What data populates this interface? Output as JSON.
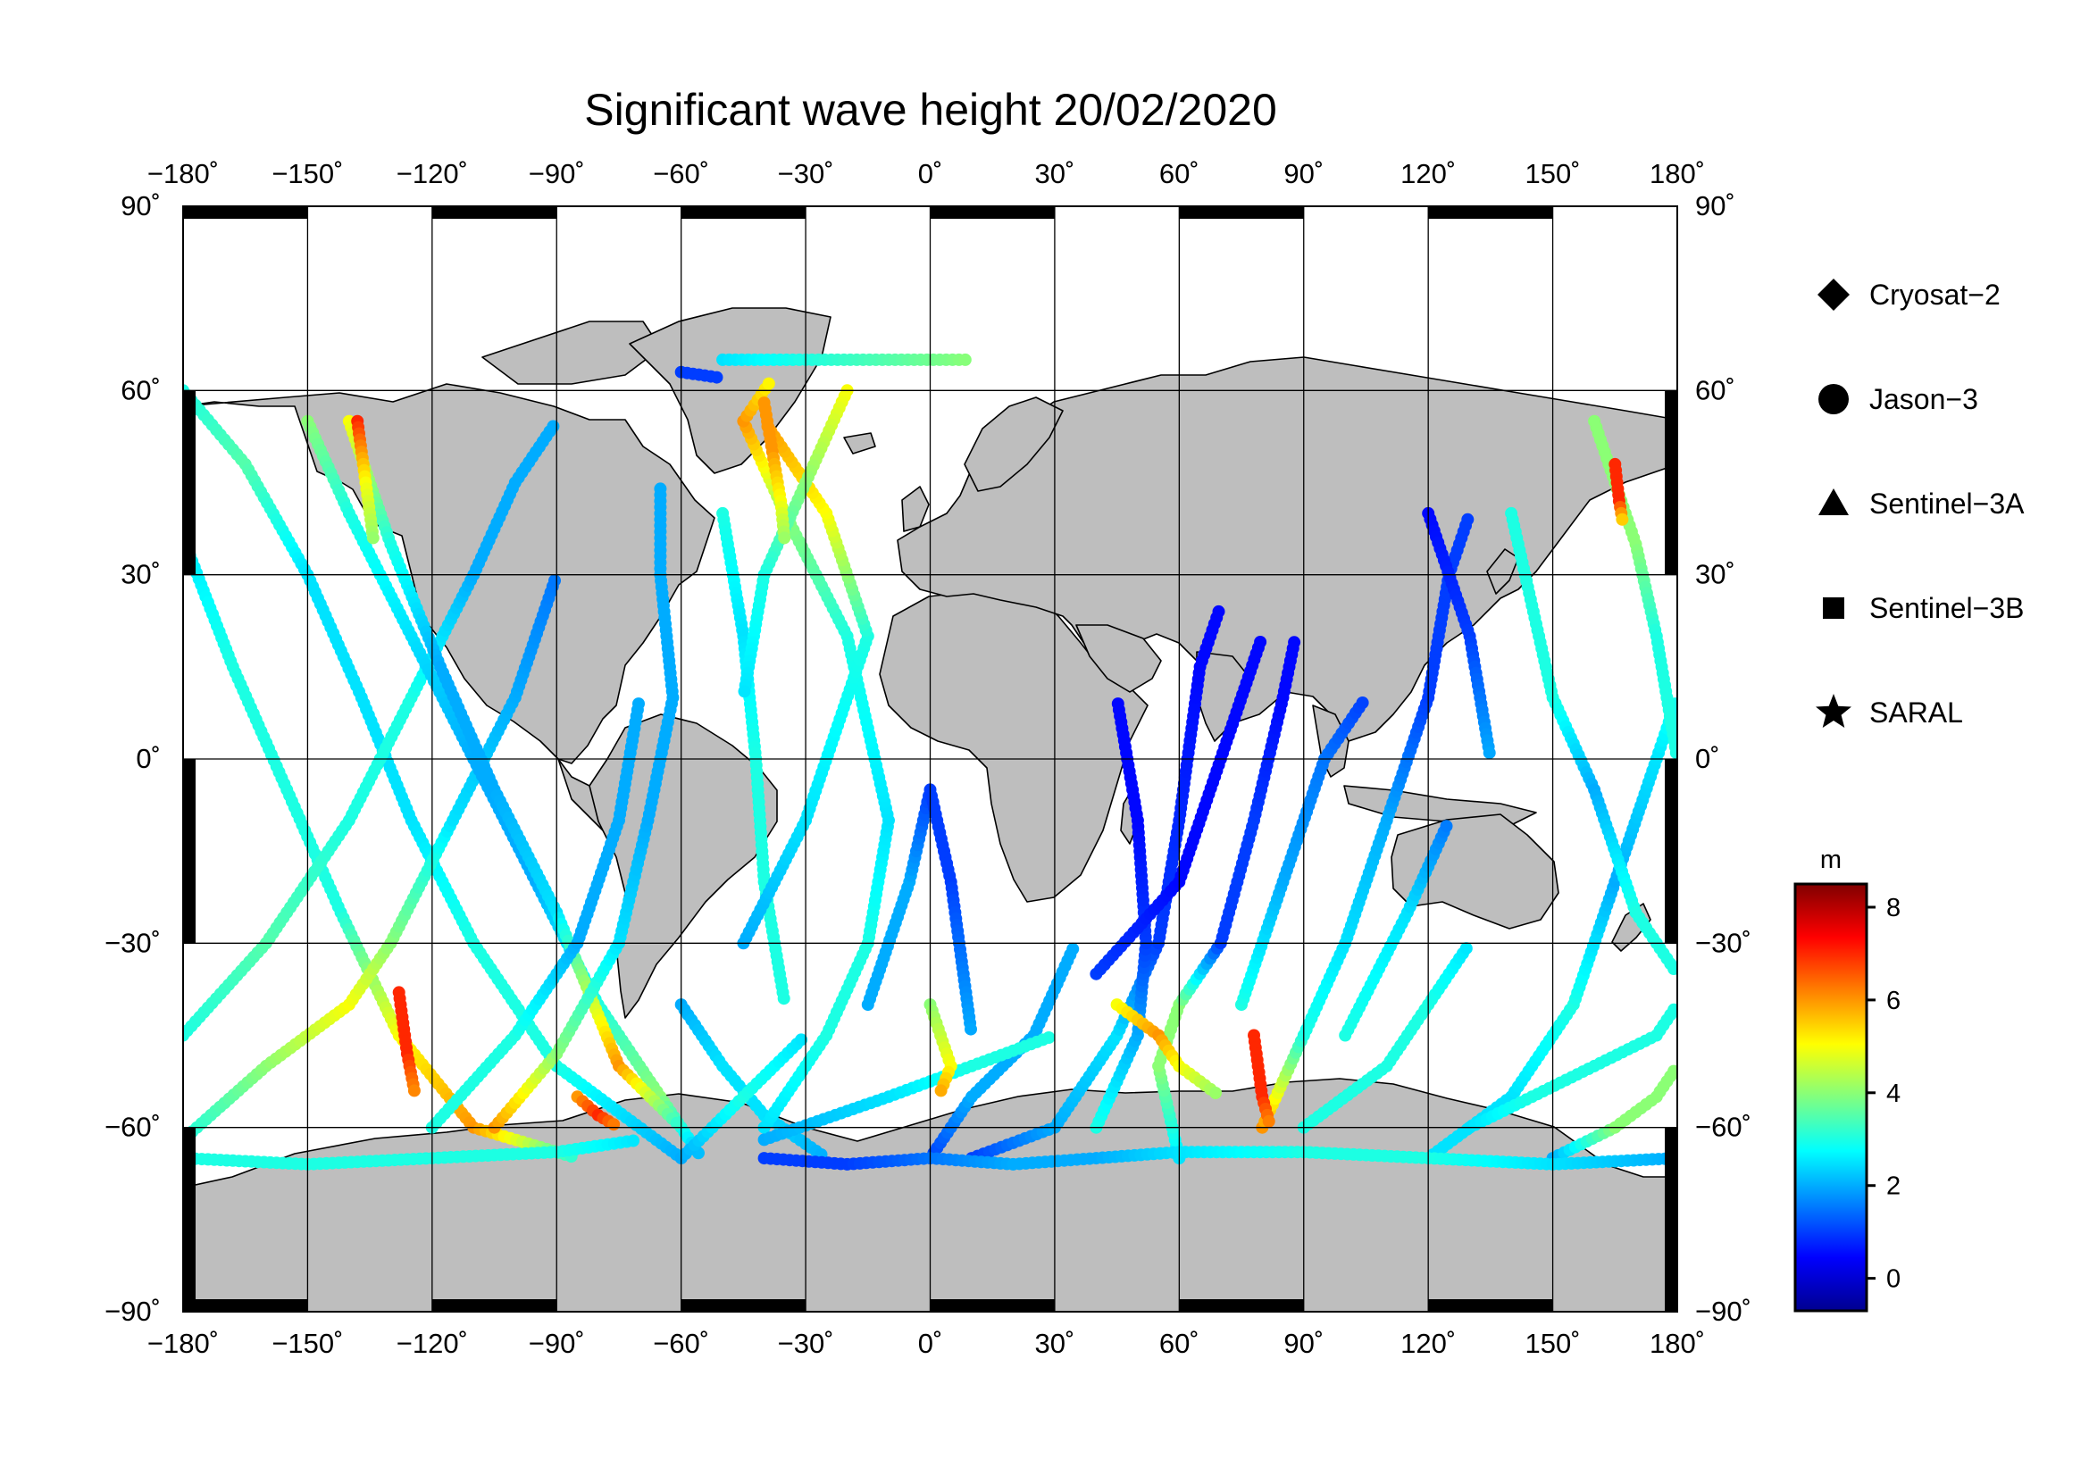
{
  "title": "Significant wave height 20/02/2020",
  "map": {
    "lon_range": [
      -180,
      180
    ],
    "lat_range": [
      -90,
      90
    ],
    "lon_ticks": [
      -180,
      -150,
      -120,
      -90,
      -60,
      -30,
      0,
      30,
      60,
      90,
      120,
      150,
      180
    ],
    "lat_ticks": [
      -90,
      -60,
      -30,
      0,
      30,
      60,
      90
    ],
    "lon_labels": [
      "−180˚",
      "−150˚",
      "−120˚",
      "−90˚",
      "−60˚",
      "−30˚",
      "0˚",
      "30˚",
      "60˚",
      "90˚",
      "120˚",
      "150˚",
      "180˚"
    ],
    "lat_labels": [
      "−90˚",
      "−60˚",
      "−30˚",
      "0˚",
      "30˚",
      "60˚",
      "90˚"
    ],
    "land_color": "#bebebe",
    "grid": true
  },
  "legend": {
    "entries": [
      {
        "label": "Cryosat−2",
        "icon": "diamond-icon"
      },
      {
        "label": "Jason−3",
        "icon": "circle-icon"
      },
      {
        "label": "Sentinel−3A",
        "icon": "triangle-icon"
      },
      {
        "label": "Sentinel−3B",
        "icon": "square-icon"
      },
      {
        "label": "SARAL",
        "icon": "star-icon"
      }
    ]
  },
  "colorbar": {
    "unit": "m",
    "range": [
      -0.7,
      8.5
    ],
    "ticks": [
      0,
      2,
      4,
      6,
      8
    ],
    "tick_labels": [
      "0",
      "2",
      "4",
      "6",
      "8"
    ],
    "colormap": [
      "#00008f",
      "#0000ff",
      "#0080ff",
      "#00ffff",
      "#80ff80",
      "#ffff00",
      "#ff8000",
      "#ff0000",
      "#800000"
    ]
  },
  "tracks": [
    {
      "sat": "Jason-3",
      "pts": [
        [
          -180,
          60,
          3
        ],
        [
          -165,
          48,
          3.5
        ],
        [
          -150,
          30,
          2.5
        ],
        [
          -137,
          10,
          2.5
        ],
        [
          -125,
          -10,
          2.5
        ],
        [
          -110,
          -30,
          3
        ],
        [
          -90,
          -50,
          3
        ],
        [
          -60,
          -65,
          2
        ]
      ]
    },
    {
      "sat": "Jason-3",
      "pts": [
        [
          -180,
          36,
          2.5
        ],
        [
          -168,
          15,
          3
        ],
        [
          -155,
          -5,
          3
        ],
        [
          -142,
          -25,
          3
        ],
        [
          -128,
          -45,
          5
        ],
        [
          -110,
          -60,
          6
        ],
        [
          -85,
          -65,
          3
        ]
      ]
    },
    {
      "sat": "Jason-3",
      "pts": [
        [
          -180,
          -45,
          3
        ],
        [
          -160,
          -30,
          3.5
        ],
        [
          -140,
          -10,
          3
        ],
        [
          -125,
          10,
          3
        ],
        [
          -110,
          30,
          2
        ],
        [
          -100,
          45,
          2
        ],
        [
          -90,
          55,
          2
        ]
      ]
    },
    {
      "sat": "Jason-3",
      "pts": [
        [
          -180,
          -62,
          3
        ],
        [
          -160,
          -50,
          4
        ],
        [
          -140,
          -40,
          5
        ],
        [
          -130,
          -30,
          4
        ],
        [
          -115,
          -10,
          2.5
        ],
        [
          -100,
          10,
          2
        ],
        [
          -90,
          30,
          1.5
        ]
      ]
    },
    {
      "sat": "Jason-3",
      "pts": [
        [
          -150,
          55,
          4
        ],
        [
          -140,
          40,
          3
        ],
        [
          -125,
          20,
          2.5
        ],
        [
          -110,
          0,
          2
        ],
        [
          -95,
          -20,
          2
        ],
        [
          -80,
          -40,
          3
        ],
        [
          -65,
          -55,
          4
        ],
        [
          -55,
          -65,
          2
        ]
      ]
    },
    {
      "sat": "Jason-3",
      "pts": [
        [
          -140,
          55,
          5
        ],
        [
          -130,
          35,
          3
        ],
        [
          -118,
          15,
          2
        ],
        [
          -105,
          -5,
          2
        ],
        [
          -90,
          -25,
          2.5
        ],
        [
          -75,
          -50,
          6
        ],
        [
          -60,
          -60,
          3
        ]
      ]
    },
    {
      "sat": "Jason-3",
      "pts": [
        [
          -120,
          -60,
          3
        ],
        [
          -100,
          -45,
          3
        ],
        [
          -85,
          -30,
          2
        ],
        [
          -75,
          -10,
          2
        ],
        [
          -70,
          10,
          2
        ]
      ]
    },
    {
      "sat": "Jason-3",
      "pts": [
        [
          -105,
          -60,
          6
        ],
        [
          -90,
          -48,
          4
        ],
        [
          -75,
          -30,
          2.5
        ],
        [
          -68,
          -10,
          2
        ],
        [
          -62,
          10,
          2
        ],
        [
          -65,
          30,
          2
        ],
        [
          -65,
          45,
          2
        ]
      ]
    },
    {
      "sat": "Jason-3",
      "pts": [
        [
          -60,
          -40,
          2
        ],
        [
          -50,
          -50,
          2.5
        ],
        [
          -40,
          -58,
          2.5
        ],
        [
          -25,
          -65,
          2
        ]
      ]
    },
    {
      "sat": "Jason-3",
      "pts": [
        [
          -40,
          -60,
          2.5
        ],
        [
          -25,
          -45,
          3
        ],
        [
          -15,
          -30,
          3
        ],
        [
          -10,
          -10,
          2.5
        ],
        [
          -20,
          20,
          3
        ],
        [
          -35,
          40,
          4
        ],
        [
          -45,
          55,
          6
        ],
        [
          -38,
          62,
          5
        ]
      ]
    },
    {
      "sat": "Jason-3",
      "pts": [
        [
          -50,
          40,
          3
        ],
        [
          -45,
          20,
          2.5
        ],
        [
          -42,
          0,
          3
        ],
        [
          -40,
          -20,
          3
        ],
        [
          -35,
          -40,
          3
        ]
      ]
    },
    {
      "sat": "Jason-3",
      "pts": [
        [
          -45,
          -30,
          2
        ],
        [
          -30,
          -10,
          2.5
        ],
        [
          -15,
          20,
          3
        ],
        [
          -25,
          40,
          5
        ],
        [
          -40,
          55,
          6
        ]
      ]
    },
    {
      "sat": "Jason-3",
      "pts": [
        [
          -20,
          60,
          5
        ],
        [
          -30,
          45,
          4
        ],
        [
          -40,
          30,
          3
        ],
        [
          -45,
          10,
          2.5
        ]
      ]
    },
    {
      "sat": "Jason-3",
      "pts": [
        [
          -15,
          -40,
          2
        ],
        [
          -5,
          -20,
          2
        ],
        [
          0,
          -5,
          1
        ],
        [
          5,
          -20,
          1
        ],
        [
          10,
          -45,
          2
        ]
      ]
    },
    {
      "sat": "Jason-3",
      "pts": [
        [
          0,
          -65,
          1
        ],
        [
          10,
          -55,
          2
        ],
        [
          25,
          -45,
          2
        ],
        [
          35,
          -30,
          2
        ]
      ]
    },
    {
      "sat": "Jason-3",
      "pts": [
        [
          10,
          -65,
          1
        ],
        [
          30,
          -60,
          2
        ],
        [
          45,
          -45,
          2.5
        ],
        [
          55,
          -30,
          1
        ],
        [
          60,
          -10,
          0.8
        ],
        [
          65,
          15,
          0.5
        ],
        [
          70,
          25,
          0.5
        ]
      ]
    },
    {
      "sat": "Jason-3",
      "pts": [
        [
          40,
          -60,
          3
        ],
        [
          50,
          -45,
          2
        ],
        [
          52,
          -30,
          1
        ],
        [
          50,
          -10,
          0.5
        ],
        [
          45,
          10,
          0.5
        ]
      ]
    },
    {
      "sat": "Jason-3",
      "pts": [
        [
          60,
          -65,
          2.5
        ],
        [
          55,
          -50,
          4
        ],
        [
          60,
          -40,
          4
        ],
        [
          70,
          -30,
          1
        ],
        [
          78,
          -10,
          1
        ],
        [
          85,
          10,
          0.5
        ],
        [
          88,
          20,
          0.5
        ]
      ]
    },
    {
      "sat": "Jason-3",
      "pts": [
        [
          40,
          -35,
          1
        ],
        [
          60,
          -20,
          0.5
        ],
        [
          70,
          0,
          0.5
        ],
        [
          80,
          20,
          0.5
        ]
      ]
    },
    {
      "sat": "Jason-3",
      "pts": [
        [
          80,
          -60,
          6
        ],
        [
          90,
          -45,
          3
        ],
        [
          100,
          -30,
          2.5
        ],
        [
          110,
          -10,
          2
        ],
        [
          120,
          10,
          1
        ],
        [
          125,
          30,
          1
        ],
        [
          130,
          40,
          1
        ]
      ]
    },
    {
      "sat": "Jason-3",
      "pts": [
        [
          75,
          -40,
          3
        ],
        [
          85,
          -20,
          2
        ],
        [
          95,
          0,
          1.5
        ],
        [
          105,
          10,
          1
        ]
      ]
    },
    {
      "sat": "Jason-3",
      "pts": [
        [
          90,
          -60,
          3
        ],
        [
          110,
          -50,
          3
        ],
        [
          120,
          -40,
          3
        ],
        [
          130,
          -30,
          2.5
        ]
      ]
    },
    {
      "sat": "Jason-3",
      "pts": [
        [
          100,
          -45,
          3
        ],
        [
          115,
          -25,
          2.5
        ],
        [
          125,
          -10,
          1.5
        ]
      ]
    },
    {
      "sat": "Jason-3",
      "pts": [
        [
          120,
          -65,
          2.5
        ],
        [
          140,
          -55,
          2.5
        ],
        [
          155,
          -40,
          3
        ],
        [
          165,
          -20,
          2
        ],
        [
          175,
          0,
          2.5
        ],
        [
          180,
          10,
          3
        ]
      ]
    },
    {
      "sat": "Jason-3",
      "pts": [
        [
          130,
          -60,
          2.5
        ],
        [
          145,
          -55,
          3
        ],
        [
          160,
          -50,
          3
        ],
        [
          175,
          -45,
          3
        ],
        [
          180,
          -40,
          3
        ]
      ]
    },
    {
      "sat": "Jason-3",
      "pts": [
        [
          150,
          -65,
          2
        ],
        [
          165,
          -60,
          4
        ],
        [
          175,
          -55,
          4
        ],
        [
          180,
          -50,
          4
        ]
      ]
    },
    {
      "sat": "Jason-3",
      "pts": [
        [
          160,
          55,
          4
        ],
        [
          165,
          45,
          4
        ],
        [
          170,
          35,
          4
        ],
        [
          175,
          20,
          3
        ],
        [
          180,
          0,
          3
        ]
      ]
    },
    {
      "sat": "Jason-3",
      "pts": [
        [
          140,
          40,
          3
        ],
        [
          145,
          25,
          3
        ],
        [
          150,
          10,
          3
        ],
        [
          160,
          -5,
          2
        ],
        [
          170,
          -25,
          3
        ],
        [
          180,
          -35,
          3
        ]
      ]
    },
    {
      "sat": "Jason-3",
      "pts": [
        [
          120,
          40,
          0.5
        ],
        [
          130,
          20,
          1
        ],
        [
          135,
          0,
          2
        ]
      ]
    },
    {
      "sat": "Jason-3",
      "pts": [
        [
          -180,
          -65,
          3
        ],
        [
          -150,
          -66,
          3
        ],
        [
          -120,
          -65,
          3
        ],
        [
          -90,
          -64,
          3
        ],
        [
          -70,
          -62,
          2.5
        ]
      ]
    },
    {
      "sat": "Jason-3",
      "pts": [
        [
          -40,
          -65,
          1
        ],
        [
          -20,
          -66,
          1
        ],
        [
          0,
          -65,
          1.5
        ],
        [
          20,
          -66,
          2
        ],
        [
          40,
          -65,
          2
        ],
        [
          60,
          -64,
          2.5
        ],
        [
          90,
          -64,
          3
        ],
        [
          120,
          -65,
          3
        ],
        [
          150,
          -66,
          2.5
        ],
        [
          180,
          -65,
          2
        ]
      ]
    },
    {
      "sat": "Jason-3",
      "pts": [
        [
          -40,
          -62,
          2
        ],
        [
          -10,
          -55,
          2.5
        ],
        [
          10,
          -50,
          3
        ],
        [
          30,
          -45,
          3
        ]
      ]
    },
    {
      "sat": "Jason-3",
      "pts": [
        [
          -60,
          -65,
          2
        ],
        [
          -45,
          -55,
          3
        ],
        [
          -30,
          -45,
          2.5
        ]
      ]
    },
    {
      "sat": "Jason-3",
      "pts": [
        [
          -50,
          65,
          2.5
        ],
        [
          -30,
          65,
          3
        ],
        [
          -10,
          65,
          3.5
        ],
        [
          10,
          65,
          4
        ]
      ]
    },
    {
      "sat": "Jason-3",
      "pts": [
        [
          -60,
          63,
          1
        ],
        [
          -50,
          62,
          1
        ]
      ]
    },
    {
      "sat": "Jason-3",
      "pts": [
        [
          -40,
          58,
          6
        ],
        [
          -38,
          50,
          6
        ],
        [
          -36,
          42,
          5
        ],
        [
          -35,
          35,
          4
        ]
      ]
    },
    {
      "sat": "Jason-3",
      "pts": [
        [
          -138,
          55,
          7
        ],
        [
          -136,
          45,
          5
        ],
        [
          -134,
          35,
          4
        ]
      ]
    },
    {
      "sat": "Jason-3",
      "pts": [
        [
          -128,
          -38,
          7
        ],
        [
          -126,
          -48,
          7
        ],
        [
          -124,
          -55,
          6
        ]
      ]
    },
    {
      "sat": "Jason-3",
      "pts": [
        [
          -85,
          -55,
          6
        ],
        [
          -80,
          -58,
          7
        ],
        [
          -75,
          -60,
          6
        ]
      ]
    },
    {
      "sat": "Jason-3",
      "pts": [
        [
          165,
          48,
          7
        ],
        [
          166,
          42,
          7
        ],
        [
          167,
          38,
          5
        ]
      ]
    },
    {
      "sat": "Jason-3",
      "pts": [
        [
          78,
          -45,
          7
        ],
        [
          80,
          -55,
          7
        ],
        [
          82,
          -60,
          6
        ]
      ]
    },
    {
      "sat": "Jason-3",
      "pts": [
        [
          45,
          -40,
          5
        ],
        [
          55,
          -45,
          6
        ],
        [
          60,
          -50,
          5
        ],
        [
          70,
          -55,
          4
        ]
      ]
    },
    {
      "sat": "Jason-3",
      "pts": [
        [
          0,
          -40,
          4
        ],
        [
          5,
          -50,
          5
        ],
        [
          2,
          -55,
          6
        ]
      ]
    }
  ]
}
